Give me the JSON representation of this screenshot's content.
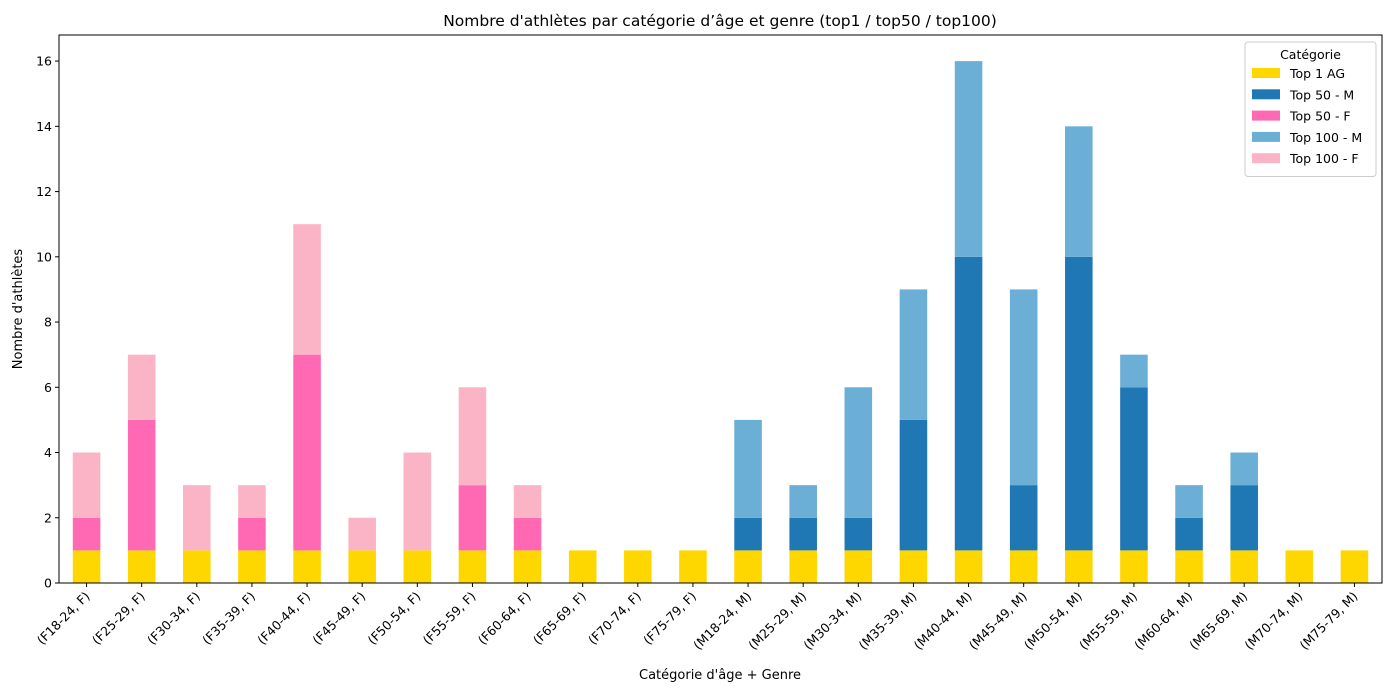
{
  "chart_data": {
    "type": "bar",
    "stacked": true,
    "title": "Nombre d'athlètes par catégorie d’âge et genre (top1 / top50 / top100)",
    "xlabel": "Catégorie d'âge + Genre",
    "ylabel": "Nombre d'athlètes",
    "ylim": [
      0,
      16.8
    ],
    "yticks": [
      0,
      2,
      4,
      6,
      8,
      10,
      12,
      14,
      16
    ],
    "grid": false,
    "legend": {
      "title": "Catégorie",
      "position": "top-right"
    },
    "categories": [
      "(F18-24, F)",
      "(F25-29, F)",
      "(F30-34, F)",
      "(F35-39, F)",
      "(F40-44, F)",
      "(F45-49, F)",
      "(F50-54, F)",
      "(F55-59, F)",
      "(F60-64, F)",
      "(F65-69, F)",
      "(F70-74, F)",
      "(F75-79, F)",
      "(M18-24, M)",
      "(M25-29, M)",
      "(M30-34, M)",
      "(M35-39, M)",
      "(M40-44, M)",
      "(M45-49, M)",
      "(M50-54, M)",
      "(M55-59, M)",
      "(M60-64, M)",
      "(M65-69, M)",
      "(M70-74, M)",
      "(M75-79, M)"
    ],
    "series": [
      {
        "name": "Top 1 AG",
        "color": "#FFD700",
        "values": [
          1,
          1,
          1,
          1,
          1,
          1,
          1,
          1,
          1,
          1,
          1,
          1,
          1,
          1,
          1,
          1,
          1,
          1,
          1,
          1,
          1,
          1,
          1,
          1
        ]
      },
      {
        "name": "Top 50 - M",
        "color": "#1F77B4",
        "values": [
          0,
          0,
          0,
          0,
          0,
          0,
          0,
          0,
          0,
          0,
          0,
          0,
          1,
          1,
          1,
          4,
          9,
          2,
          9,
          5,
          1,
          2,
          0,
          0
        ]
      },
      {
        "name": "Top 50 - F",
        "color": "#FF69B4",
        "values": [
          1,
          4,
          0,
          1,
          6,
          0,
          0,
          2,
          1,
          0,
          0,
          0,
          0,
          0,
          0,
          0,
          0,
          0,
          0,
          0,
          0,
          0,
          0,
          0
        ]
      },
      {
        "name": "Top 100 - M",
        "color": "#6BAED6",
        "values": [
          0,
          0,
          0,
          0,
          0,
          0,
          0,
          0,
          0,
          0,
          0,
          0,
          3,
          1,
          4,
          4,
          6,
          6,
          4,
          1,
          1,
          1,
          0,
          0
        ]
      },
      {
        "name": "Top 100 - F",
        "color": "#FBB4C6",
        "values": [
          2,
          2,
          2,
          1,
          4,
          1,
          3,
          3,
          1,
          0,
          0,
          0,
          0,
          0,
          0,
          0,
          0,
          0,
          0,
          0,
          0,
          0,
          0,
          0
        ]
      }
    ]
  }
}
